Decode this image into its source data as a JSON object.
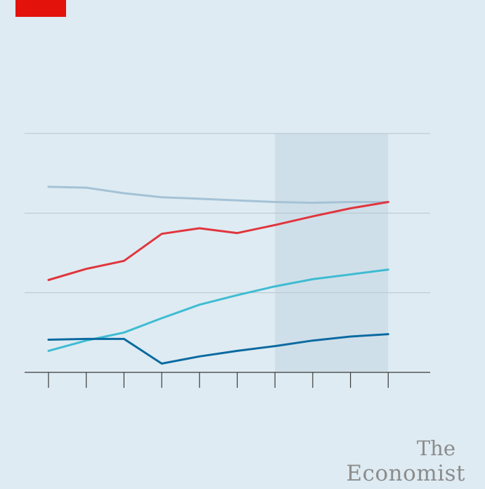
{
  "brand": {
    "line1": "The",
    "line2": "Economist"
  },
  "colors": {
    "background": "#deebf2",
    "tag": "#e3120b",
    "shade": "#cfdfe9",
    "gridline": "#b6c4cd",
    "axis": "#3a3a3a"
  },
  "chart_data": {
    "type": "line",
    "x": [
      0,
      1,
      2,
      3,
      4,
      5,
      6,
      7,
      8,
      9
    ],
    "ylim": [
      0,
      3
    ],
    "grid": true,
    "shaded_x_range": [
      6,
      9
    ],
    "series": [
      {
        "color": "#a5c2d6",
        "values": [
          2.33,
          2.32,
          2.25,
          2.2,
          2.18,
          2.16,
          2.14,
          2.13,
          2.14,
          2.14
        ]
      },
      {
        "color": "#e1353d",
        "values": [
          1.16,
          1.3,
          1.4,
          1.74,
          1.81,
          1.75,
          1.85,
          1.96,
          2.06,
          2.14
        ]
      },
      {
        "color": "#3ebcd2",
        "values": [
          0.27,
          0.4,
          0.5,
          0.68,
          0.85,
          0.97,
          1.08,
          1.17,
          1.23,
          1.29
        ]
      },
      {
        "color": "#0a6aa1",
        "values": [
          0.41,
          0.42,
          0.42,
          0.11,
          0.2,
          0.27,
          0.33,
          0.4,
          0.45,
          0.48
        ]
      }
    ]
  }
}
